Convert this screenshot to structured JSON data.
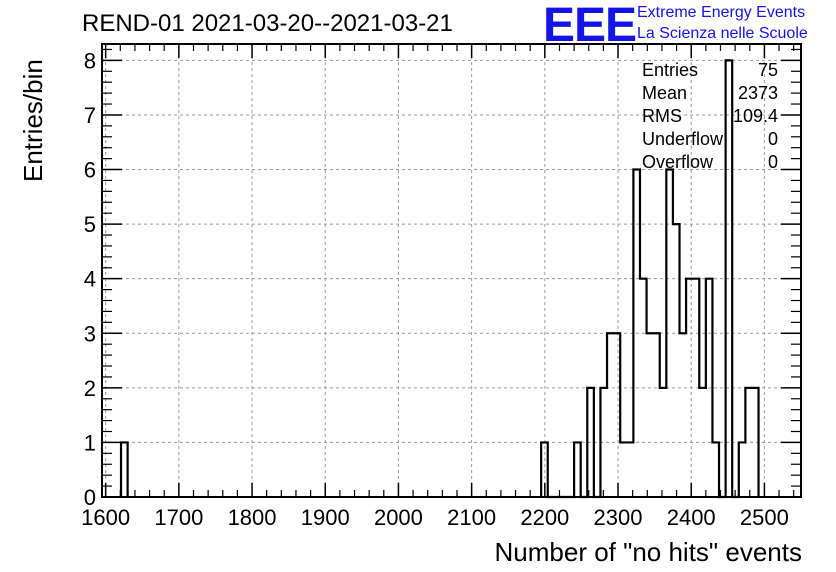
{
  "chart_data": {
    "type": "bar",
    "histogram": true,
    "title": "REND-01 2021-03-20--2021-03-21",
    "xlabel": "Number of \"no hits\" events",
    "ylabel": "Entries/bin",
    "xlim": [
      1595,
      2550
    ],
    "ylim": [
      0,
      8.3
    ],
    "xticks": [
      "1600",
      "1700",
      "1800",
      "1900",
      "2000",
      "2100",
      "2200",
      "2300",
      "2400",
      "2500"
    ],
    "yticks": [
      "0",
      "1",
      "2",
      "3",
      "4",
      "5",
      "6",
      "7",
      "8"
    ],
    "grid": true,
    "bin_width": 9,
    "bins": [
      {
        "x": 1621,
        "count": 1
      },
      {
        "x": 2195,
        "count": 1
      },
      {
        "x": 2204,
        "count": 0
      },
      {
        "x": 2213,
        "count": 0
      },
      {
        "x": 2222,
        "count": 0
      },
      {
        "x": 2231,
        "count": 0
      },
      {
        "x": 2240,
        "count": 1
      },
      {
        "x": 2249,
        "count": 0
      },
      {
        "x": 2258,
        "count": 2
      },
      {
        "x": 2267,
        "count": 0
      },
      {
        "x": 2276,
        "count": 2
      },
      {
        "x": 2285,
        "count": 3
      },
      {
        "x": 2294,
        "count": 3
      },
      {
        "x": 2303,
        "count": 1
      },
      {
        "x": 2312,
        "count": 1
      },
      {
        "x": 2321,
        "count": 6
      },
      {
        "x": 2330,
        "count": 4
      },
      {
        "x": 2339,
        "count": 3
      },
      {
        "x": 2348,
        "count": 3
      },
      {
        "x": 2357,
        "count": 2
      },
      {
        "x": 2366,
        "count": 6
      },
      {
        "x": 2375,
        "count": 5
      },
      {
        "x": 2384,
        "count": 3
      },
      {
        "x": 2393,
        "count": 4
      },
      {
        "x": 2402,
        "count": 4
      },
      {
        "x": 2411,
        "count": 2
      },
      {
        "x": 2420,
        "count": 4
      },
      {
        "x": 2429,
        "count": 1
      },
      {
        "x": 2438,
        "count": 0
      },
      {
        "x": 2447,
        "count": 8
      },
      {
        "x": 2456,
        "count": 0
      },
      {
        "x": 2465,
        "count": 1
      },
      {
        "x": 2474,
        "count": 2
      },
      {
        "x": 2483,
        "count": 2
      }
    ]
  },
  "logo": {
    "text": "EEE",
    "line1": "Extreme Energy Events",
    "line2": "La Scienza nelle Scuole",
    "color": "#1414e6"
  },
  "stats": [
    {
      "label": "Entries",
      "value": "75"
    },
    {
      "label": "Mean",
      "value": "2373"
    },
    {
      "label": "RMS",
      "value": "109.4"
    },
    {
      "label": "Underflow",
      "value": "0"
    },
    {
      "label": "Overflow",
      "value": "0"
    }
  ]
}
